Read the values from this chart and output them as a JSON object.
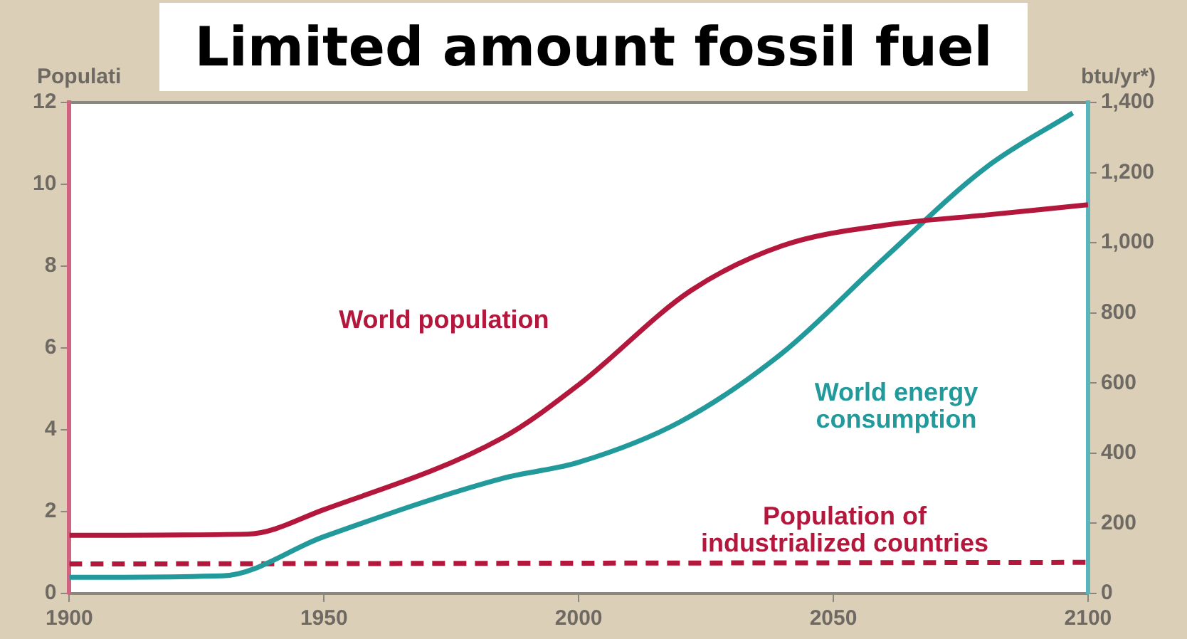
{
  "chart_data": {
    "type": "line",
    "title": "Limited amount fossil fuel",
    "ylabel": "Populati",
    "y2label": "btu/yr*)",
    "series": [
      {
        "name": "World population",
        "color": "#b3173c",
        "x": [
          1900,
          1935,
          1950,
          1985,
          2000,
          2022,
          2040,
          2060,
          2080,
          2100
        ],
        "values": [
          1.42,
          1.45,
          2.05,
          3.8,
          5.1,
          7.4,
          8.5,
          9.0,
          9.25,
          9.5
        ]
      },
      {
        "name": "World energy consumption",
        "color": "#22999b",
        "axis": "y2",
        "x": [
          1900,
          1930,
          1950,
          1985,
          2000,
          2020,
          2040,
          2060,
          2080,
          2097
        ],
        "values": [
          46,
          50,
          162,
          328,
          374,
          490,
          686,
          956,
          1215,
          1370
        ]
      },
      {
        "name": "Population of industrialized countries",
        "color": "#b3173c",
        "line_style": "dashed",
        "x": [
          1900,
          2100
        ],
        "values": [
          0.72,
          0.76
        ]
      }
    ],
    "xlim": [
      1900,
      2100
    ],
    "xticks": [
      1900,
      1950,
      2000,
      2050,
      2100
    ],
    "ylim": [
      0,
      12
    ],
    "yticks": [
      0,
      2,
      4,
      6,
      8,
      10,
      12
    ],
    "y2lim": [
      0,
      1400
    ],
    "y2ticks": [
      0,
      200,
      400,
      600,
      800,
      {
        "value": 1000,
        "label": "1,000"
      },
      {
        "value": 1200,
        "label": "1,200"
      },
      {
        "value": 1400,
        "label": "1,400"
      }
    ],
    "grid": false,
    "legend": false,
    "marker": "none"
  }
}
